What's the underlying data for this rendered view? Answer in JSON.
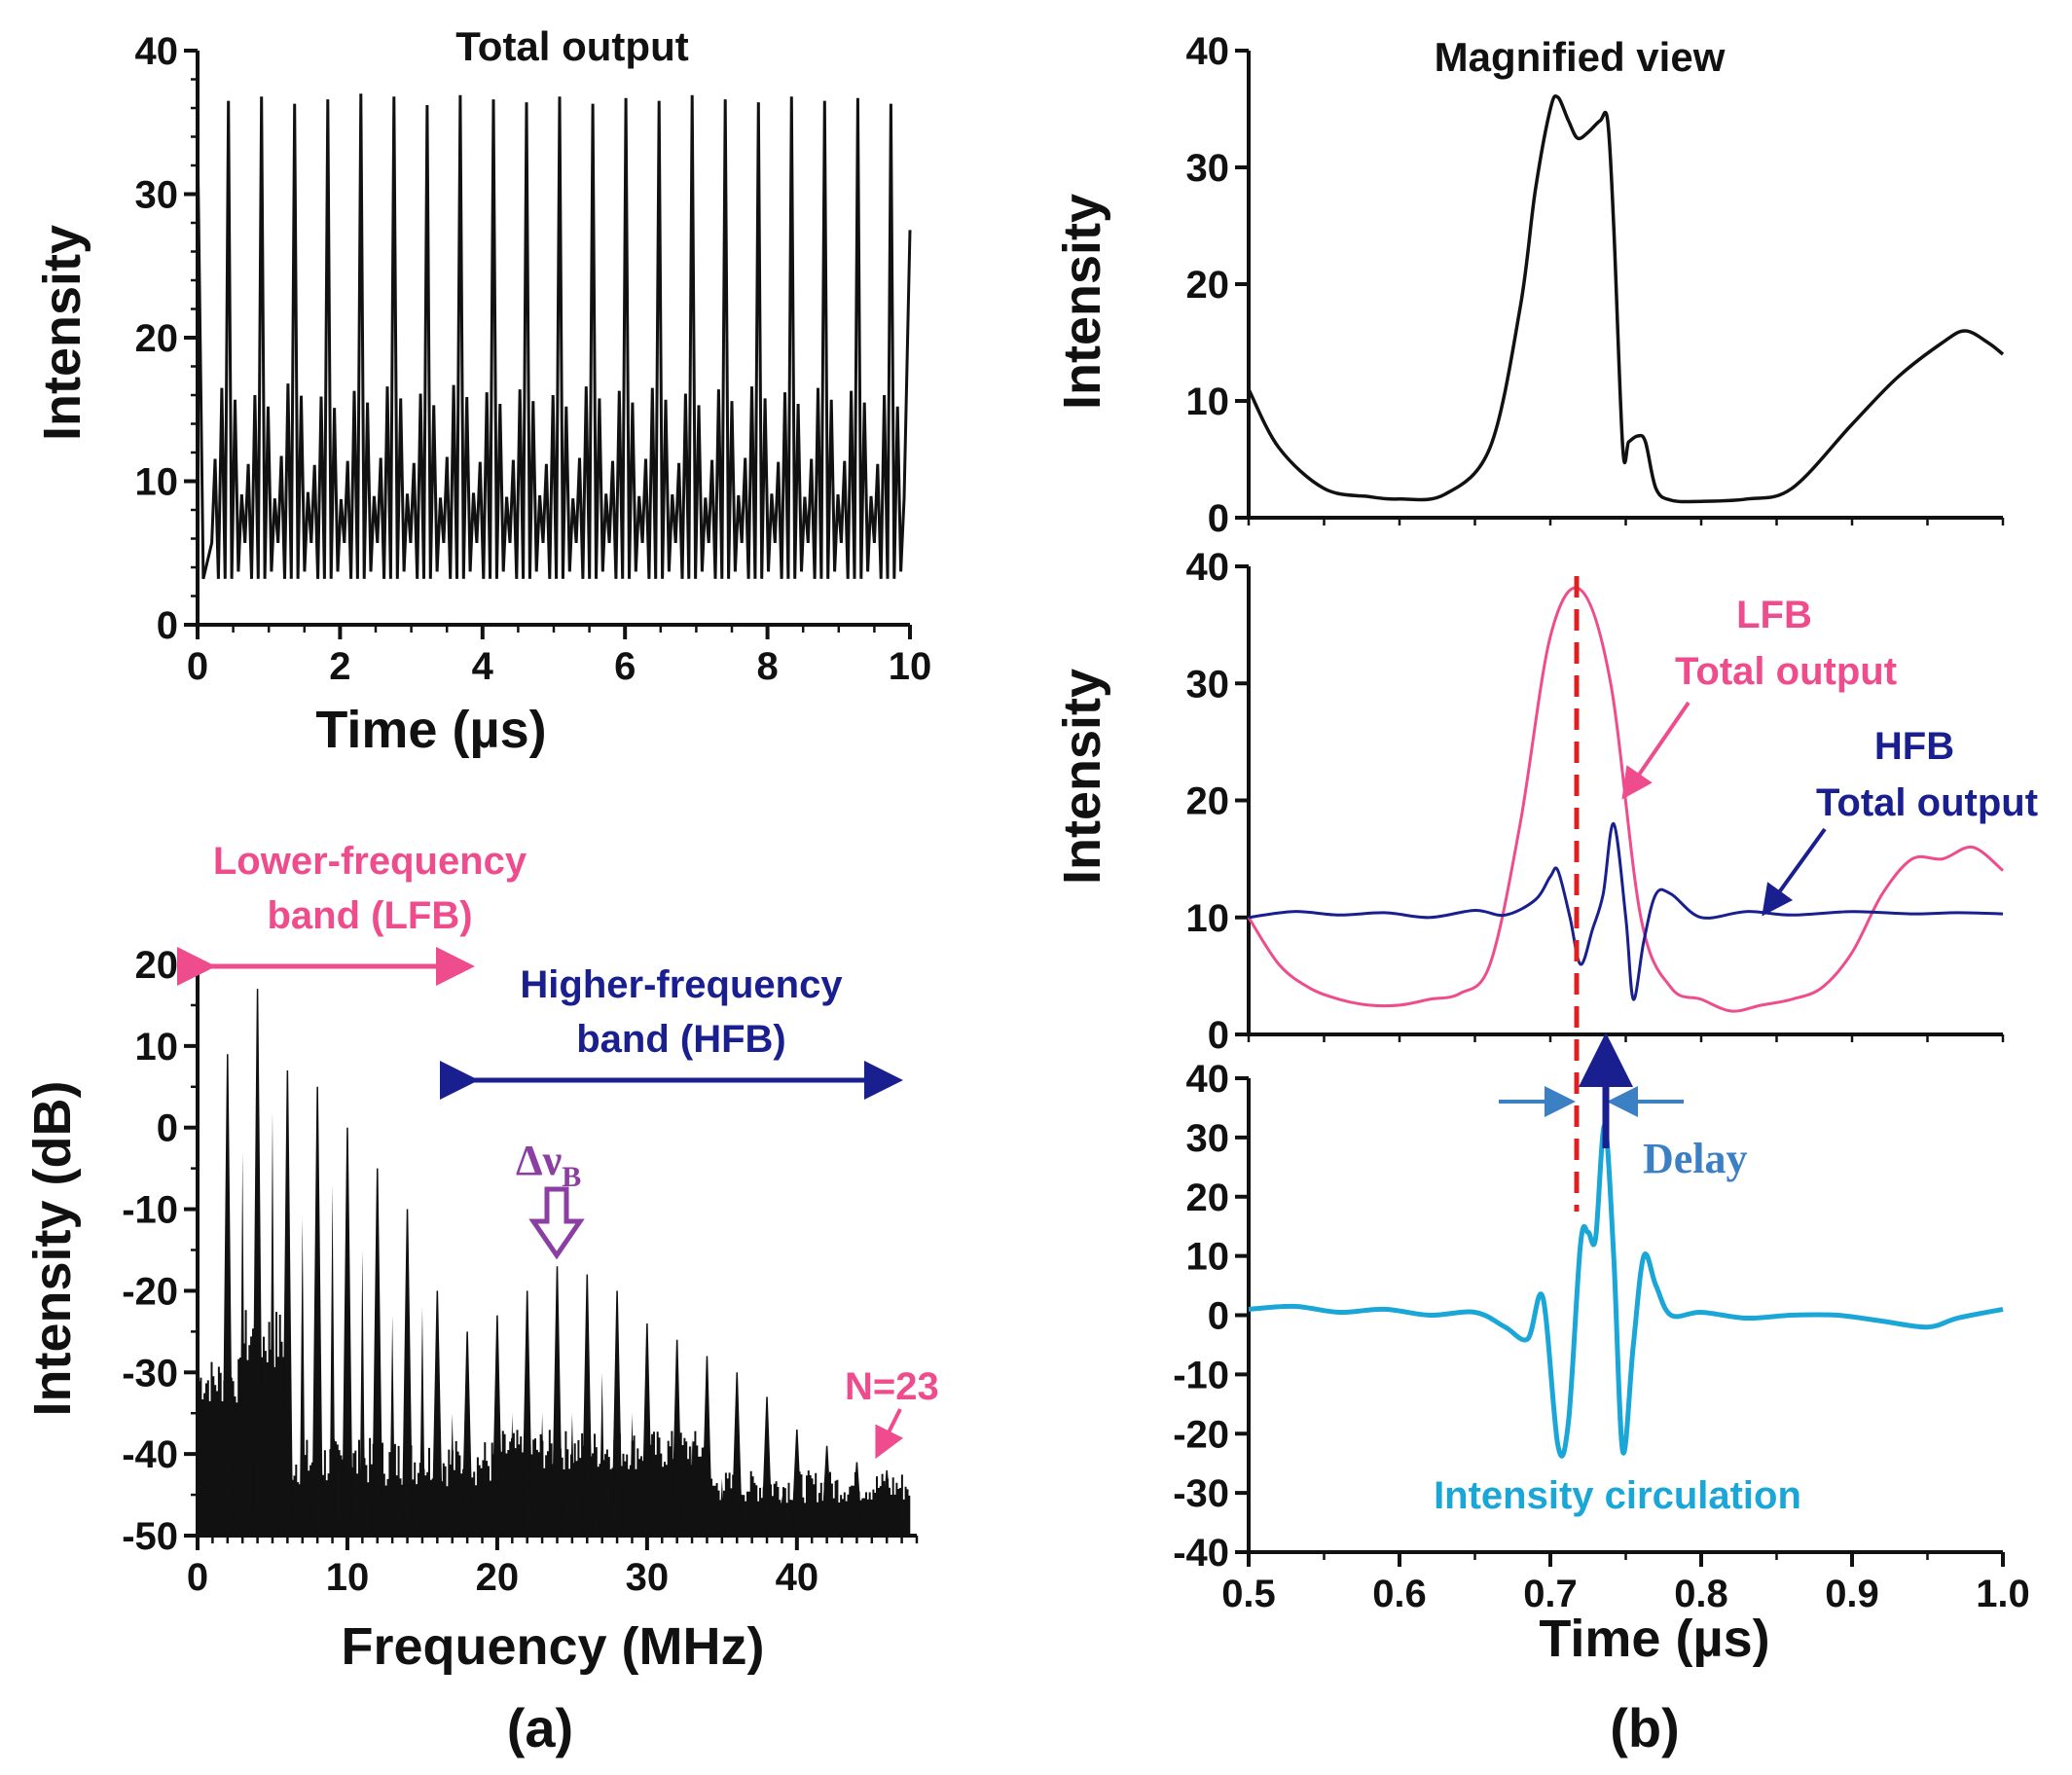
{
  "panels": {
    "a": "(a)",
    "b": "(b)"
  },
  "colors": {
    "black": "#111111",
    "lfb": "#ee4c8c",
    "hfb": "#1a1f8f",
    "ic": "#1aa6d6",
    "delay": "#3b7fc4",
    "dashed": "#e02020",
    "purple": "#8b3fa3"
  },
  "chart_data": [
    {
      "id": "a-top",
      "type": "line",
      "title": "Total output",
      "xlabel": "Time (µs)",
      "ylabel": "Intensity",
      "xlim": [
        0,
        10
      ],
      "ylim": [
        0,
        40
      ],
      "xticks": [
        "0",
        "2",
        "4",
        "6",
        "8",
        "10"
      ],
      "yticks": [
        "0",
        "10",
        "20",
        "30",
        "40"
      ],
      "series": [
        {
          "pulse_period_us": 0.465,
          "major_peak_heights": [
            36.5,
            36.8,
            36.3,
            36.6,
            37.0,
            36.8,
            36.2,
            36.9,
            36.6,
            36.4,
            36.8,
            36.3,
            36.7,
            36.5,
            36.9,
            36.6,
            36.4,
            36.8,
            36.5,
            36.7,
            36.3
          ],
          "minor_peak_heights": [
            16.5,
            16.0,
            16.8,
            15.9,
            16.3,
            16.6,
            16.1,
            16.7,
            16.2,
            16.4,
            16.0,
            16.6,
            16.3,
            16.5,
            16.1,
            16.4,
            16.6,
            16.2,
            16.5,
            16.3,
            16.0
          ],
          "baseline": 3.2
        }
      ]
    },
    {
      "id": "a-bottom",
      "type": "bar",
      "xlabel": "Frequency (MHz)",
      "ylabel": "Intensity (dB)",
      "xlim": [
        0,
        48
      ],
      "ylim": [
        -50,
        20
      ],
      "xticks": [
        "0",
        "10",
        "20",
        "30",
        "40"
      ],
      "yticks": [
        "20",
        "10",
        "0",
        "-10",
        "-20",
        "-30",
        "-40",
        "-50"
      ],
      "spacing_MHz": 2.0,
      "harmonic_freqs_MHz": [
        2,
        4,
        6,
        8,
        10,
        12,
        14,
        16,
        18,
        20,
        22,
        24,
        26,
        28,
        30,
        32,
        34,
        36,
        38,
        40,
        42,
        44,
        46
      ],
      "harmonic_peaks_dB": [
        9,
        17,
        7,
        5,
        0,
        -5,
        -10,
        -20,
        -25,
        -23,
        -20,
        -17,
        -18,
        -20,
        -24,
        -26,
        -28,
        -30,
        -33,
        -37,
        -39,
        -41,
        -42
      ],
      "annotations": {
        "lfb": "Lower-frequency\nband (LFB)",
        "hfb": "Higher-frequency\nband (HFB)",
        "delta": "Δν",
        "delta_sub": "B",
        "n": "N=23"
      }
    },
    {
      "id": "b-top",
      "type": "line",
      "title": "Magnified view",
      "ylabel": "Intensity",
      "xlim": [
        0.5,
        1.0
      ],
      "ylim": [
        0,
        40
      ],
      "yticks": [
        "0",
        "10",
        "20",
        "30",
        "40"
      ],
      "series": [
        {
          "x": [
            0.5,
            0.52,
            0.55,
            0.58,
            0.6,
            0.63,
            0.66,
            0.68,
            0.69,
            0.7,
            0.705,
            0.712,
            0.718,
            0.725,
            0.733,
            0.738,
            0.742,
            0.748,
            0.752,
            0.758,
            0.763,
            0.77,
            0.78,
            0.8,
            0.83,
            0.86,
            0.9,
            0.93,
            0.96,
            0.975,
            0.99,
            1.0
          ],
          "y": [
            11,
            6,
            2.5,
            1.8,
            1.6,
            2.0,
            6,
            18,
            28,
            35,
            36,
            34,
            32.5,
            33,
            34,
            34,
            25,
            6,
            6.5,
            7,
            6.5,
            2.5,
            1.5,
            1.4,
            1.6,
            2.5,
            8,
            12,
            15,
            16,
            15,
            14
          ]
        }
      ]
    },
    {
      "id": "b-middle",
      "type": "line",
      "ylabel": "Intensity",
      "xlim": [
        0.5,
        1.0
      ],
      "ylim": [
        0,
        40
      ],
      "yticks": [
        "0",
        "10",
        "20",
        "30",
        "40"
      ],
      "labels": {
        "lfb": "LFB",
        "lfb_total": "Total output",
        "hfb": "HFB",
        "hfb_total": "Total output"
      },
      "series": [
        {
          "name": "LFB",
          "x": [
            0.5,
            0.52,
            0.54,
            0.56,
            0.58,
            0.6,
            0.62,
            0.64,
            0.66,
            0.68,
            0.7,
            0.72,
            0.74,
            0.76,
            0.78,
            0.8,
            0.82,
            0.84,
            0.86,
            0.88,
            0.9,
            0.92,
            0.94,
            0.96,
            0.98,
            1.0
          ],
          "y": [
            10,
            6,
            4,
            3,
            2.5,
            2.5,
            3,
            3.5,
            6,
            18,
            34,
            38,
            30,
            10,
            4,
            3,
            2,
            2.5,
            3,
            4,
            7,
            12,
            15,
            15,
            16,
            14
          ]
        },
        {
          "name": "HFB",
          "x": [
            0.5,
            0.53,
            0.56,
            0.59,
            0.62,
            0.65,
            0.67,
            0.69,
            0.7,
            0.705,
            0.713,
            0.72,
            0.728,
            0.735,
            0.742,
            0.75,
            0.755,
            0.762,
            0.77,
            0.78,
            0.8,
            0.83,
            0.86,
            0.9,
            0.94,
            0.97,
            1.0
          ],
          "y": [
            10,
            10.5,
            10.2,
            10.4,
            10.0,
            10.6,
            10.2,
            11.5,
            13.5,
            14,
            10,
            6,
            9,
            12,
            18,
            10,
            3,
            8,
            12,
            12,
            10,
            10.5,
            10.2,
            10.5,
            10.3,
            10.4,
            10.3
          ]
        }
      ]
    },
    {
      "id": "b-bottom",
      "type": "line",
      "xlabel": "Time (µs)",
      "xlim": [
        0.5,
        1.0
      ],
      "ylim": [
        -40,
        40
      ],
      "xticks": [
        "0.5",
        "0.6",
        "0.7",
        "0.8",
        "0.9",
        "1.0"
      ],
      "yticks": [
        "40",
        "30",
        "20",
        "10",
        "0",
        "-10",
        "-20",
        "-30",
        "-40"
      ],
      "labels": {
        "delay": "Delay",
        "ic": "Intensity circulation"
      },
      "series": [
        {
          "name": "Intensity circulation",
          "x": [
            0.5,
            0.53,
            0.56,
            0.59,
            0.62,
            0.65,
            0.67,
            0.685,
            0.695,
            0.705,
            0.712,
            0.72,
            0.725,
            0.73,
            0.736,
            0.742,
            0.748,
            0.755,
            0.762,
            0.77,
            0.78,
            0.8,
            0.83,
            0.86,
            0.89,
            0.92,
            0.95,
            0.97,
            1.0
          ],
          "y": [
            1,
            1.5,
            0.5,
            1,
            0,
            0.5,
            -2,
            -4,
            3,
            -22,
            -18,
            12,
            14,
            13,
            32,
            10,
            -23,
            -5,
            10,
            5,
            0,
            0.5,
            -0.5,
            0,
            0,
            -1,
            -2,
            -0.5,
            1
          ]
        }
      ]
    }
  ]
}
